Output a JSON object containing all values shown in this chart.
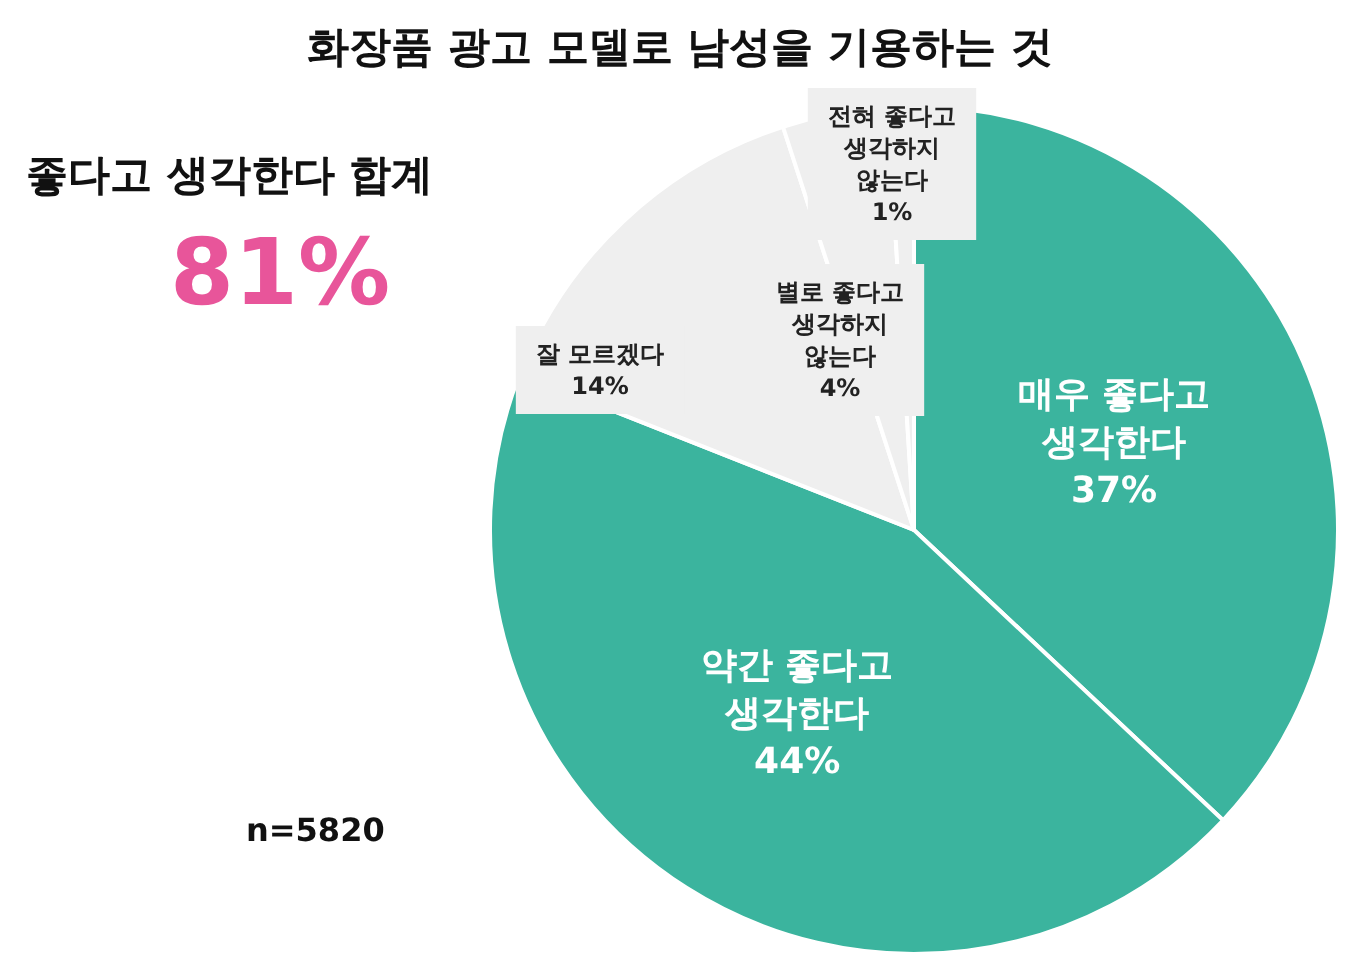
{
  "chart_data": {
    "type": "pie",
    "title": "화장품 광고 모델로 남성을 기용하는 것",
    "categories": [
      "매우 좋다고\n생각한다",
      "약간 좋다고\n생각한다",
      "잘 모르겠다",
      "별로 좋다고\n생각하지\n않는다",
      "전혀 좋다고\n생각하지\n않는다"
    ],
    "values": [
      37,
      44,
      14,
      4,
      1
    ],
    "value_labels": [
      "37%",
      "44%",
      "14%",
      "4%",
      "1%"
    ],
    "colors": [
      "#3bb49e",
      "#3bb49e",
      "#efefef",
      "#efefef",
      "#efefef"
    ],
    "annotations": [
      "좋다고 생각한다 합계",
      "81%",
      "n=5820"
    ]
  }
}
